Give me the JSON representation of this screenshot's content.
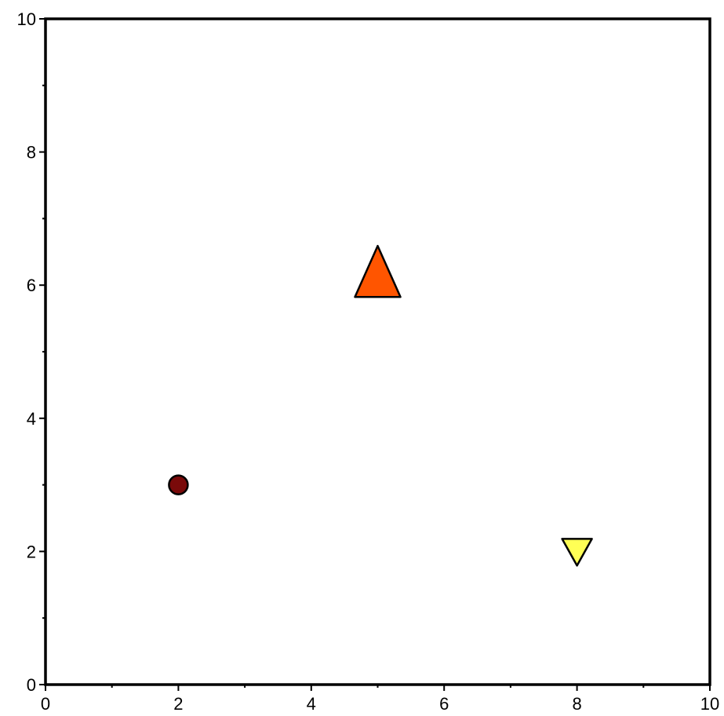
{
  "chart_data": {
    "type": "scatter",
    "title": "",
    "xlabel": "",
    "ylabel": "",
    "xlim": [
      0,
      10
    ],
    "ylim": [
      0,
      10
    ],
    "grid": false,
    "x_ticks": [
      0,
      2,
      4,
      6,
      8,
      10
    ],
    "y_ticks": [
      0,
      2,
      4,
      6,
      8,
      10
    ],
    "x_tick_labels": [
      "0",
      "2",
      "4",
      "6",
      "8",
      "10"
    ],
    "y_tick_labels": [
      "0",
      "2",
      "4",
      "6",
      "8",
      "10"
    ],
    "x_minor_ticks": [
      1,
      3,
      5,
      7,
      9
    ],
    "y_minor_ticks": [
      1,
      3,
      5,
      7,
      9
    ],
    "points": [
      {
        "x": 2,
        "y": 3,
        "marker": "circle",
        "color": "#7a0a0a"
      },
      {
        "x": 5,
        "y": 6,
        "marker": "triangle-up",
        "color": "#ff5500"
      },
      {
        "x": 8,
        "y": 2,
        "marker": "triangle-down",
        "color": "#ffff55"
      }
    ]
  }
}
